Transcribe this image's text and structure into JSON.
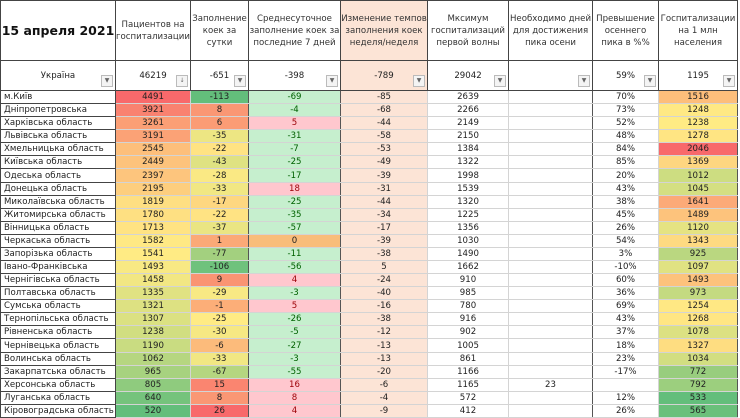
{
  "header": {
    "title": "15 апреля 2021",
    "columns": [
      "Пациентов на госпитализации",
      "Заполнение коек за сутки",
      "Среднесуточное заполнение коек за последние 7 дней",
      "Изменение темпов заполнения коек неделя/неделя",
      "Мксимум госпитализаций первой волны",
      "Необходимо дней для достижения пика осени",
      "Превышение осеннего пика в %%",
      "Госпитализации на 1 млн населения"
    ]
  },
  "summary": {
    "name": "Україна",
    "values": [
      "46219",
      "-651",
      "-398",
      "-789",
      "29042",
      "",
      "59%",
      "1195"
    ],
    "filter_icons": [
      "filter-dropdown-icon",
      "sort-descending-icon"
    ]
  },
  "rows": [
    [
      "м.Київ",
      4491,
      -113,
      -69,
      -85,
      2639,
      "",
      "70%",
      1516
    ],
    [
      "Дніпропетровська",
      3921,
      8,
      -4,
      -68,
      2266,
      "",
      "73%",
      1248
    ],
    [
      "Харківська область",
      3261,
      6,
      5,
      -44,
      2149,
      "",
      "52%",
      1238
    ],
    [
      "Львівська область",
      3191,
      -35,
      -31,
      -58,
      2150,
      "",
      "48%",
      1278
    ],
    [
      "Хмельницька область",
      2545,
      -22,
      -7,
      -53,
      1384,
      "",
      "84%",
      2046
    ],
    [
      "Київська область",
      2449,
      -43,
      -25,
      -49,
      1322,
      "",
      "85%",
      1369
    ],
    [
      "Одеська область",
      2397,
      -28,
      -17,
      -39,
      1998,
      "",
      "20%",
      1012
    ],
    [
      "Донецька область",
      2195,
      -33,
      18,
      -31,
      1539,
      "",
      "43%",
      1045
    ],
    [
      "Миколаївська область",
      1819,
      -17,
      -25,
      -44,
      1320,
      "",
      "38%",
      1641
    ],
    [
      "Житомирська область",
      1780,
      -22,
      -35,
      -34,
      1225,
      "",
      "45%",
      1489
    ],
    [
      "Вінницька область",
      1713,
      -37,
      -57,
      -17,
      1356,
      "",
      "26%",
      1120
    ],
    [
      "Черкаська область",
      1582,
      1,
      0,
      -39,
      1030,
      "",
      "54%",
      1343
    ],
    [
      "Запорізька область",
      1541,
      -77,
      -11,
      -38,
      1490,
      "",
      "3%",
      925
    ],
    [
      "Івано-Франківська",
      1493,
      -106,
      -56,
      5,
      1662,
      "",
      "-10%",
      1097
    ],
    [
      "Чернігівська область",
      1458,
      9,
      4,
      -24,
      910,
      "",
      "60%",
      1493
    ],
    [
      "Полтавська область",
      1335,
      -29,
      -3,
      -40,
      985,
      "",
      "36%",
      973
    ],
    [
      "Сумська область",
      1321,
      -1,
      5,
      -16,
      780,
      "",
      "69%",
      1254
    ],
    [
      "Тернопільська область",
      1307,
      -25,
      -26,
      -38,
      916,
      "",
      "43%",
      1268
    ],
    [
      "Рівненська область",
      1238,
      -30,
      -5,
      -12,
      902,
      "",
      "37%",
      1078
    ],
    [
      "Чернівецька область",
      1190,
      -6,
      -27,
      -13,
      1005,
      "",
      "18%",
      1327
    ],
    [
      "Волинська область",
      1062,
      -33,
      -3,
      -13,
      861,
      "",
      "23%",
      1034
    ],
    [
      "Закарпатська область",
      965,
      -67,
      -55,
      -20,
      1166,
      "",
      "-17%",
      772
    ],
    [
      "Херсонська область",
      805,
      15,
      16,
      -6,
      1165,
      "23",
      "",
      792
    ],
    [
      "Луганська область",
      640,
      8,
      8,
      -4,
      572,
      "",
      "12%",
      533
    ],
    [
      "Кіровоградська область",
      520,
      26,
      4,
      -9,
      412,
      "",
      "26%",
      565
    ]
  ],
  "colors": {
    "scale_low": "#63be7b",
    "scale_mid": "#ffeb84",
    "scale_high": "#f8696b",
    "positive_bg": "#ffc7ce",
    "positive_text": "#9c0006",
    "negative_bg": "#c6efce",
    "negative_text": "#006100",
    "zero_bg": "#f9bd7a",
    "weekly_bg": "#fce4d6"
  }
}
